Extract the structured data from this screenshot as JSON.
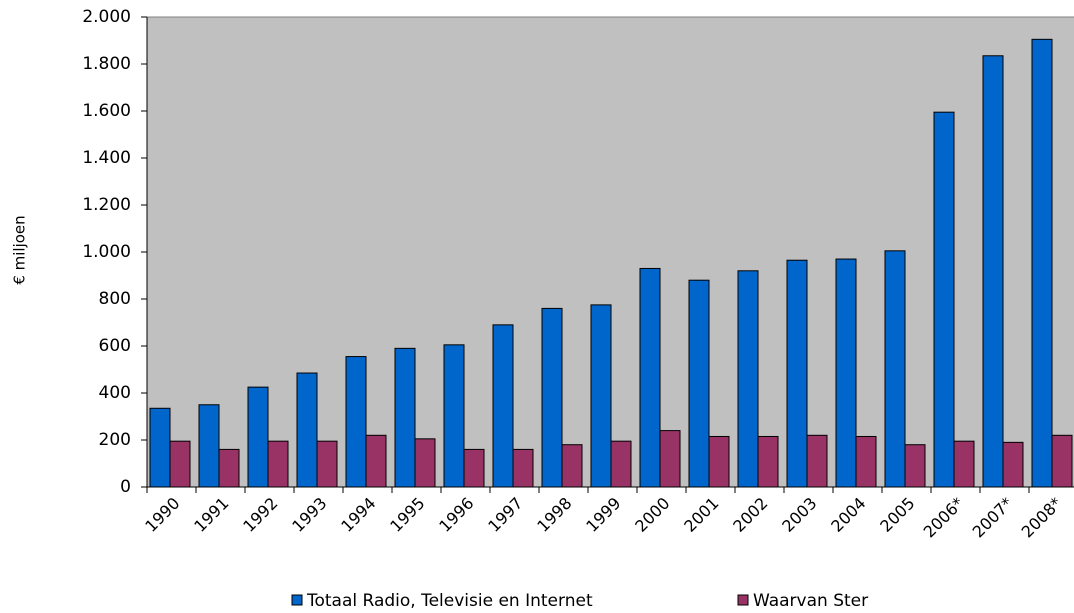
{
  "chart_data": {
    "type": "bar",
    "y_label": "€ miljoen",
    "categories": [
      "1990",
      "1991",
      "1992",
      "1993",
      "1994",
      "1995",
      "1996",
      "1997",
      "1998",
      "1999",
      "2000",
      "2001",
      "2002",
      "2003",
      "2004",
      "2005",
      "2006*",
      "2007*",
      "2008*"
    ],
    "series": [
      {
        "name": "Totaal Radio, Televisie en Internet",
        "color": "#0066cc",
        "values": [
          335,
          350,
          425,
          485,
          555,
          590,
          605,
          690,
          760,
          775,
          930,
          880,
          920,
          965,
          970,
          1005,
          1595,
          1835,
          1905
        ]
      },
      {
        "name": "Waarvan Ster",
        "color": "#993366",
        "values": [
          195,
          160,
          195,
          195,
          220,
          205,
          160,
          160,
          180,
          195,
          240,
          215,
          215,
          220,
          215,
          180,
          195,
          190,
          220
        ]
      }
    ],
    "ylim": [
      0,
      2000
    ],
    "yticks": [
      0,
      200,
      400,
      600,
      800,
      {
        "value": 1000,
        "label": "1.000"
      },
      {
        "value": 1200,
        "label": "1.200"
      },
      {
        "value": 1400,
        "label": "1.400"
      },
      {
        "value": 1600,
        "label": "1.600"
      },
      {
        "value": 1800,
        "label": "1.800"
      },
      {
        "value": 2000,
        "label": "2.000"
      }
    ],
    "plot_background": "#c0c0c0"
  }
}
